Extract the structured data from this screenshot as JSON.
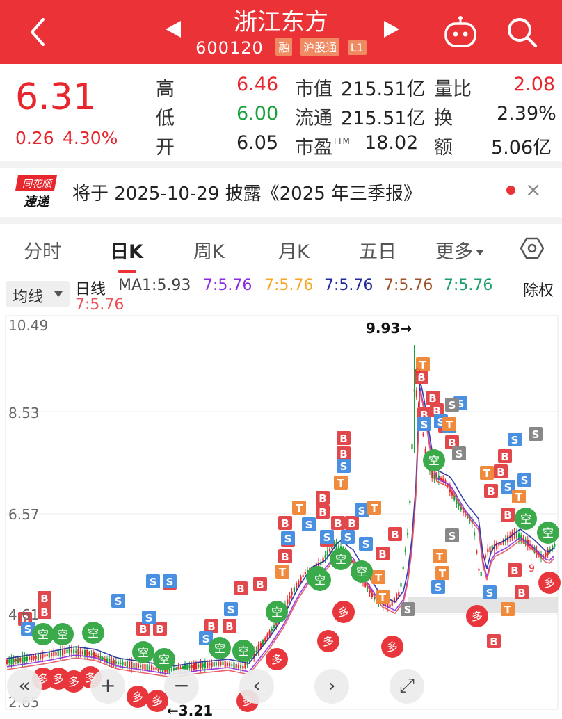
{
  "header": {
    "title": "浙江东方",
    "code": "600120",
    "tags": [
      "融",
      "沪股通",
      "L1"
    ]
  },
  "quote": {
    "price": "6.31",
    "change": "0.26",
    "change_pct": "4.30%",
    "high_label": "高",
    "high": "6.46",
    "low_label": "低",
    "low": "6.00",
    "open_label": "开",
    "open": "6.05",
    "mktcap_label": "市值",
    "mktcap": "215.51亿",
    "float_label": "流通",
    "float": "215.51亿",
    "pe_label": "市盈",
    "pe_sup": "TTM",
    "pe": "18.02",
    "volratio_label": "量比",
    "volratio": "2.08",
    "turnover_label": "换",
    "turnover": "2.39%",
    "amount_label": "额",
    "amount": "5.06亿"
  },
  "news": {
    "logo_top": "同花顺",
    "logo_bottom": "速递",
    "text": "将于 2025-10-29 披露《2025 年三季报》",
    "close": "×"
  },
  "tabs": [
    {
      "label": "分时"
    },
    {
      "label": "日K"
    },
    {
      "label": "周K"
    },
    {
      "label": "月K"
    },
    {
      "label": "五日"
    },
    {
      "label": "更多"
    }
  ],
  "ma": {
    "select": "均线",
    "line_label": "日线",
    "ma1": "MA1:5.93",
    "items": [
      "7:5.76",
      "7:5.76",
      "7:5.76",
      "7:5.76",
      "7:5.76",
      "7:5.76"
    ],
    "fuquan": "除权"
  },
  "colors": {
    "brand": "#ea3237",
    "up": "#e8262d",
    "down": "#18a03a",
    "ma_colors": [
      "#8a2be2",
      "#f5a623",
      "#1f2a9c",
      "#a0522d",
      "#1a9e6a",
      "#e8525a"
    ]
  },
  "chart": {
    "y_labels": [
      "10.49",
      "8.53",
      "6.57",
      "4.61",
      "2.65"
    ],
    "max_label": "9.93→",
    "min_label": "←3.21",
    "badges": {
      "b": "B",
      "s": "S",
      "t": "T",
      "nine": "9",
      "kong": "空",
      "duo": "多"
    }
  },
  "controls": {
    "left": "«",
    "zoom_in": "+",
    "zoom_out": "−",
    "prev": "‹",
    "next": "›",
    "fullscreen": "⤢"
  }
}
